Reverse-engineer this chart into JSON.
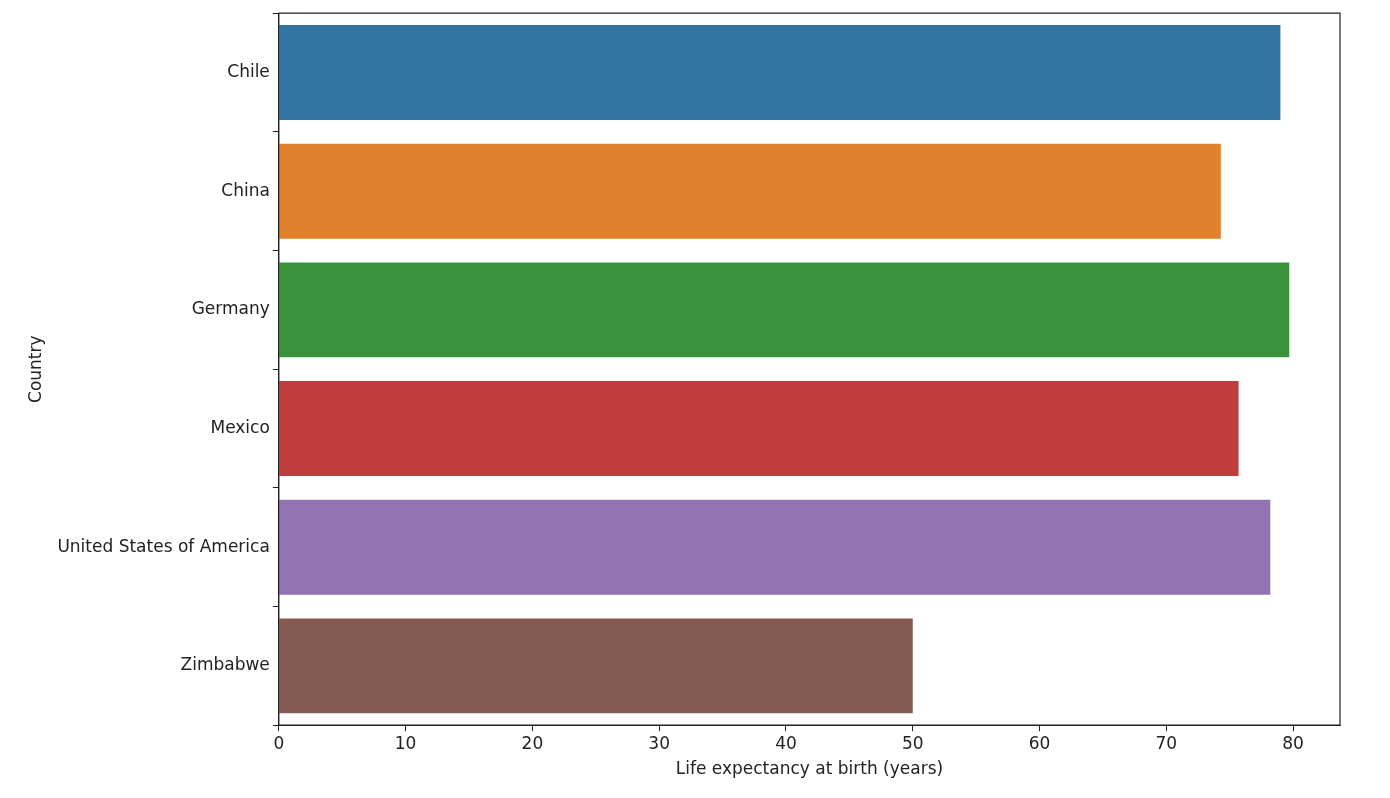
{
  "chart_data": {
    "type": "bar",
    "orientation": "horizontal",
    "xlabel": "Life expectancy at birth (years)",
    "ylabel": "Country",
    "categories": [
      "Chile",
      "China",
      "Germany",
      "Mexico",
      "United States of America",
      "Zimbabwe"
    ],
    "values": [
      79.0,
      74.3,
      79.7,
      75.7,
      78.2,
      50.0
    ],
    "colors": [
      "#3274a1",
      "#e1812c",
      "#3a923a",
      "#c03d3e",
      "#9372b2",
      "#845b53"
    ],
    "xlim": [
      0,
      83.7
    ],
    "xticks": [
      0,
      10,
      20,
      30,
      40,
      50,
      60,
      70,
      80
    ],
    "grid": false,
    "legend": false
  }
}
